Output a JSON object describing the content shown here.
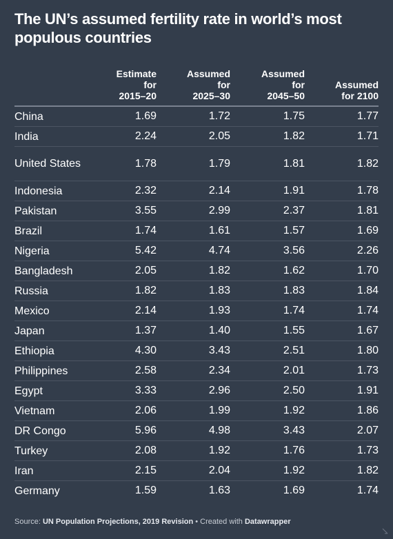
{
  "title": "The UN’s assumed fertility rate in world’s most populous countries",
  "columns": [
    "",
    "Estimate for 2015–20",
    "Assumed for 2025–30",
    "Assumed for 2045–50",
    "Assumed for 2100"
  ],
  "rows": [
    {
      "country": "China",
      "v": [
        "1.69",
        "1.72",
        "1.75",
        "1.77"
      ]
    },
    {
      "country": "India",
      "v": [
        "2.24",
        "2.05",
        "1.82",
        "1.71"
      ]
    },
    {
      "country": "United States",
      "v": [
        "1.78",
        "1.79",
        "1.81",
        "1.82"
      ]
    },
    {
      "country": "Indonesia",
      "v": [
        "2.32",
        "2.14",
        "1.91",
        "1.78"
      ]
    },
    {
      "country": "Pakistan",
      "v": [
        "3.55",
        "2.99",
        "2.37",
        "1.81"
      ]
    },
    {
      "country": "Brazil",
      "v": [
        "1.74",
        "1.61",
        "1.57",
        "1.69"
      ]
    },
    {
      "country": "Nigeria",
      "v": [
        "5.42",
        "4.74",
        "3.56",
        "2.26"
      ]
    },
    {
      "country": "Bangladesh",
      "v": [
        "2.05",
        "1.82",
        "1.62",
        "1.70"
      ]
    },
    {
      "country": "Russia",
      "v": [
        "1.82",
        "1.83",
        "1.83",
        "1.84"
      ]
    },
    {
      "country": "Mexico",
      "v": [
        "2.14",
        "1.93",
        "1.74",
        "1.74"
      ]
    },
    {
      "country": "Japan",
      "v": [
        "1.37",
        "1.40",
        "1.55",
        "1.67"
      ]
    },
    {
      "country": "Ethiopia",
      "v": [
        "4.30",
        "3.43",
        "2.51",
        "1.80"
      ]
    },
    {
      "country": "Philippines",
      "v": [
        "2.58",
        "2.34",
        "2.01",
        "1.73"
      ]
    },
    {
      "country": "Egypt",
      "v": [
        "3.33",
        "2.96",
        "2.50",
        "1.91"
      ]
    },
    {
      "country": "Vietnam",
      "v": [
        "2.06",
        "1.99",
        "1.92",
        "1.86"
      ]
    },
    {
      "country": "DR Congo",
      "v": [
        "5.96",
        "4.98",
        "3.43",
        "2.07"
      ]
    },
    {
      "country": "Turkey",
      "v": [
        "2.08",
        "1.92",
        "1.76",
        "1.73"
      ]
    },
    {
      "country": "Iran",
      "v": [
        "2.15",
        "2.04",
        "1.92",
        "1.82"
      ]
    },
    {
      "country": "Germany",
      "v": [
        "1.59",
        "1.63",
        "1.69",
        "1.74"
      ]
    }
  ],
  "footer": {
    "source_prefix": "Source: ",
    "source_name": "UN Population Projections, 2019 Revision",
    "separator": " • Created with ",
    "tool": "Datawrapper"
  }
}
